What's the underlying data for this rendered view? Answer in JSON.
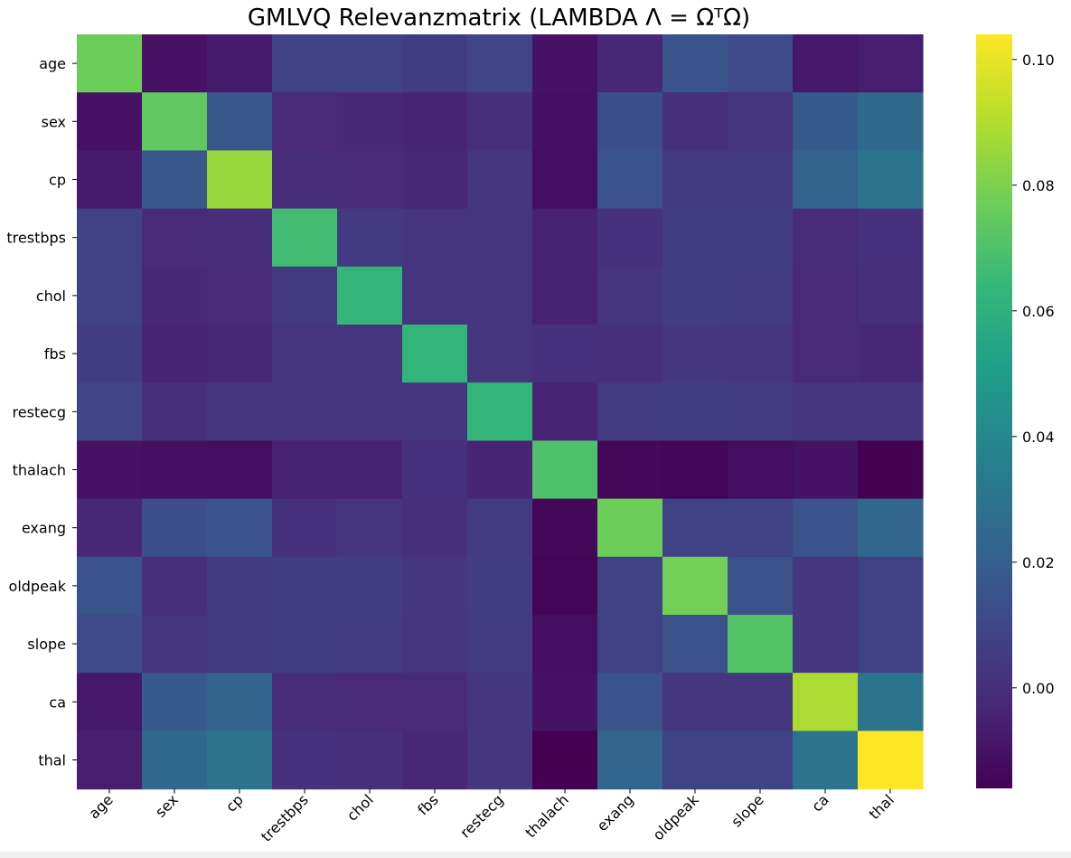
{
  "chart_data": {
    "type": "heatmap",
    "title": "GMLVQ Relevanzmatrix (LAMBDA  Λ = ΩᵀΩ)",
    "xlabel": "",
    "ylabel": "",
    "labels": [
      "age",
      "sex",
      "cp",
      "trestbps",
      "chol",
      "fbs",
      "restecg",
      "thalach",
      "exang",
      "oldpeak",
      "slope",
      "ca",
      "thal"
    ],
    "colormap": "viridis",
    "vmin": -0.016,
    "vmax": 0.104,
    "colorbar_ticks": [
      {
        "value": 0.0,
        "label": "0.00"
      },
      {
        "value": 0.02,
        "label": "0.02"
      },
      {
        "value": 0.04,
        "label": "0.04"
      },
      {
        "value": 0.06,
        "label": "0.06"
      },
      {
        "value": 0.08,
        "label": "0.08"
      },
      {
        "value": 0.1,
        "label": "0.10"
      }
    ],
    "matrix": [
      [
        0.077,
        -0.01,
        -0.007,
        0.008,
        0.008,
        0.006,
        0.009,
        -0.01,
        -0.003,
        0.015,
        0.011,
        -0.008,
        -0.006
      ],
      [
        -0.01,
        0.074,
        0.017,
        -0.002,
        -0.003,
        -0.004,
        0.0,
        -0.011,
        0.013,
        0.0,
        0.002,
        0.018,
        0.024
      ],
      [
        -0.007,
        0.017,
        0.085,
        -0.001,
        -0.002,
        -0.003,
        0.003,
        -0.012,
        0.015,
        0.004,
        0.004,
        0.022,
        0.03
      ],
      [
        0.008,
        -0.002,
        -0.001,
        0.067,
        0.004,
        0.002,
        0.002,
        -0.005,
        0.001,
        0.006,
        0.006,
        -0.001,
        0.001
      ],
      [
        0.008,
        -0.003,
        -0.002,
        0.004,
        0.063,
        0.002,
        0.002,
        -0.005,
        0.002,
        0.006,
        0.005,
        -0.002,
        0.0
      ],
      [
        0.006,
        -0.004,
        -0.003,
        0.002,
        0.002,
        0.063,
        0.002,
        0.001,
        0.0,
        0.003,
        0.002,
        -0.002,
        -0.003
      ],
      [
        0.009,
        0.0,
        0.003,
        0.002,
        0.002,
        0.002,
        0.063,
        -0.004,
        0.005,
        0.006,
        0.005,
        0.003,
        0.003
      ],
      [
        -0.01,
        -0.011,
        -0.012,
        -0.005,
        -0.005,
        0.001,
        -0.004,
        0.07,
        -0.014,
        -0.015,
        -0.012,
        -0.01,
        -0.016
      ],
      [
        -0.003,
        0.013,
        0.015,
        0.001,
        0.002,
        0.0,
        0.005,
        -0.014,
        0.077,
        0.008,
        0.008,
        0.015,
        0.023
      ],
      [
        0.015,
        0.0,
        0.004,
        0.006,
        0.006,
        0.003,
        0.006,
        -0.015,
        0.008,
        0.078,
        0.014,
        0.003,
        0.008
      ],
      [
        0.011,
        0.002,
        0.004,
        0.006,
        0.005,
        0.002,
        0.005,
        -0.012,
        0.008,
        0.014,
        0.071,
        0.003,
        0.008
      ],
      [
        -0.008,
        0.018,
        0.022,
        -0.001,
        -0.002,
        -0.002,
        0.003,
        -0.01,
        0.015,
        0.003,
        0.003,
        0.089,
        0.03
      ],
      [
        -0.006,
        0.024,
        0.03,
        0.001,
        0.0,
        -0.003,
        0.003,
        -0.016,
        0.023,
        0.008,
        0.008,
        0.03,
        0.104
      ]
    ]
  }
}
